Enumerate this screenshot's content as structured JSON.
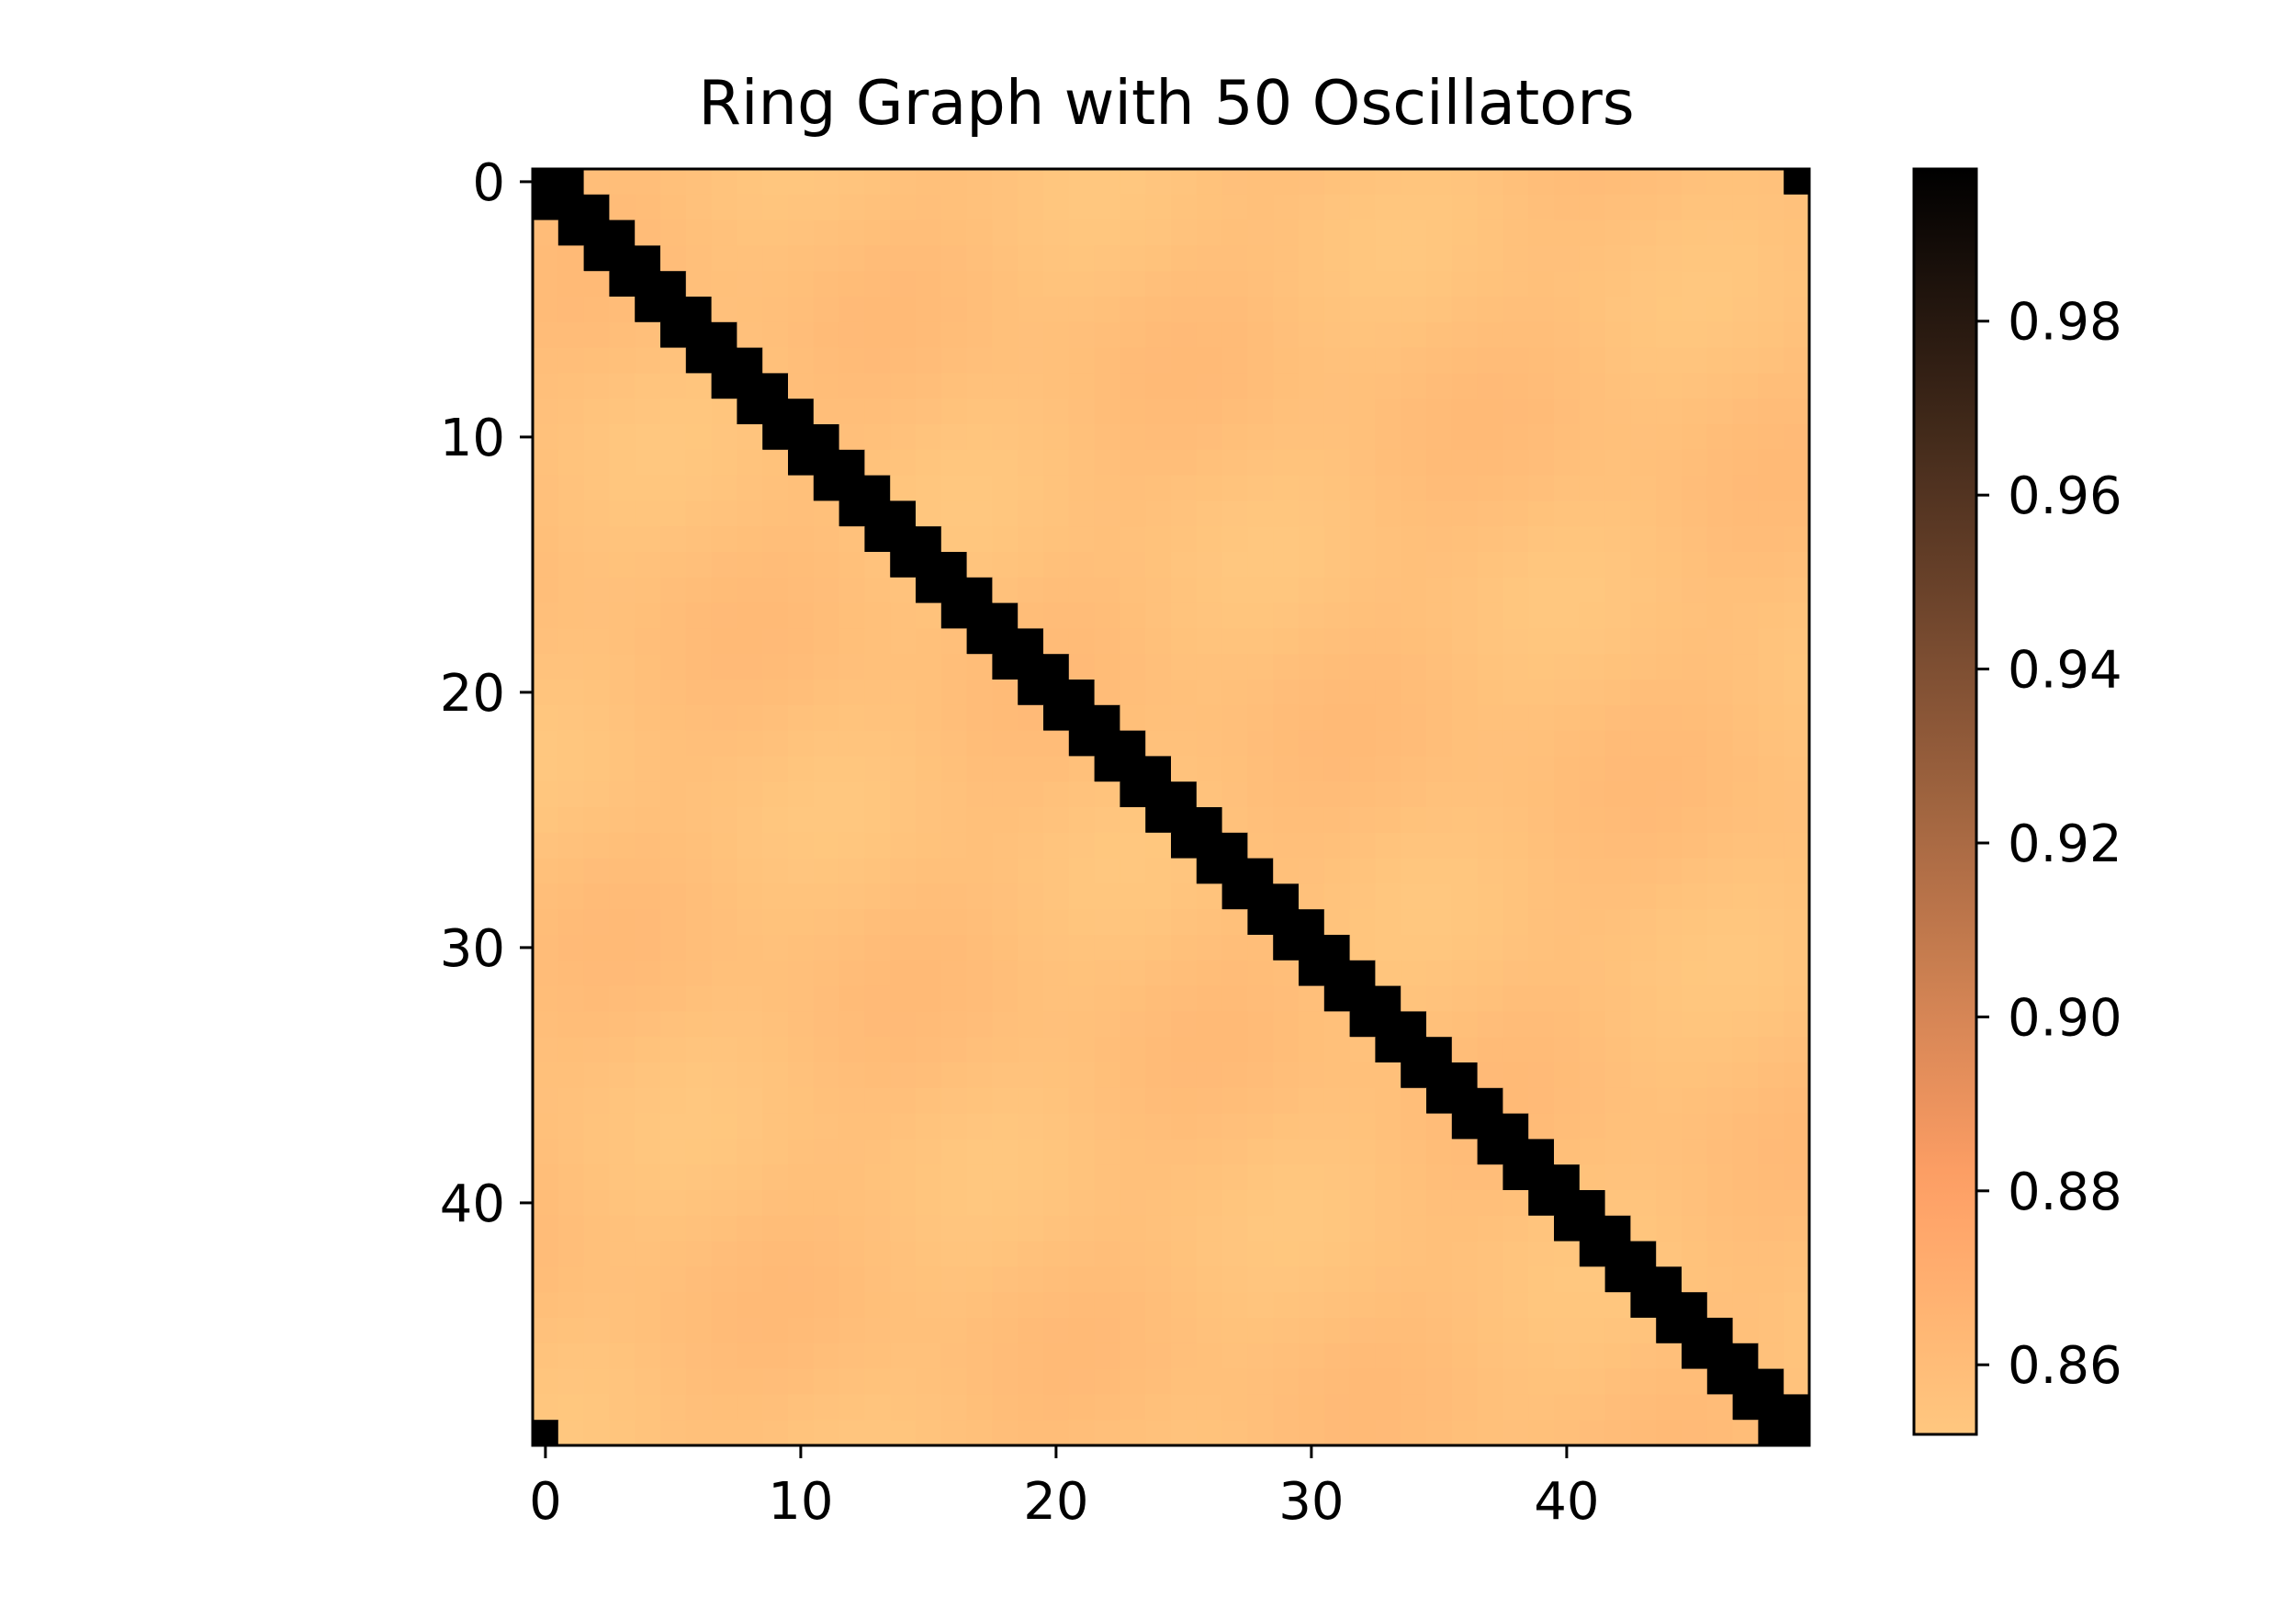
{
  "chart_data": {
    "type": "heatmap",
    "title": "Ring Graph with 50 Oscillators",
    "n": 50,
    "x_ticks": [
      0,
      10,
      20,
      30,
      40
    ],
    "y_ticks": [
      0,
      10,
      20,
      30,
      40
    ],
    "colorbar": {
      "colormap": "copper_r",
      "vmin": 0.852,
      "vmax": 0.9975,
      "ticks": [
        "0.86",
        "0.88",
        "0.90",
        "0.92",
        "0.94",
        "0.96",
        "0.98"
      ]
    },
    "matrix_description": {
      "diagonal_value": 1.0,
      "adjacent_value": 1.0,
      "ring_wrap_corners_value": 1.0,
      "off_diagonal_min": 0.852,
      "off_diagonal_max": 0.862
    }
  }
}
